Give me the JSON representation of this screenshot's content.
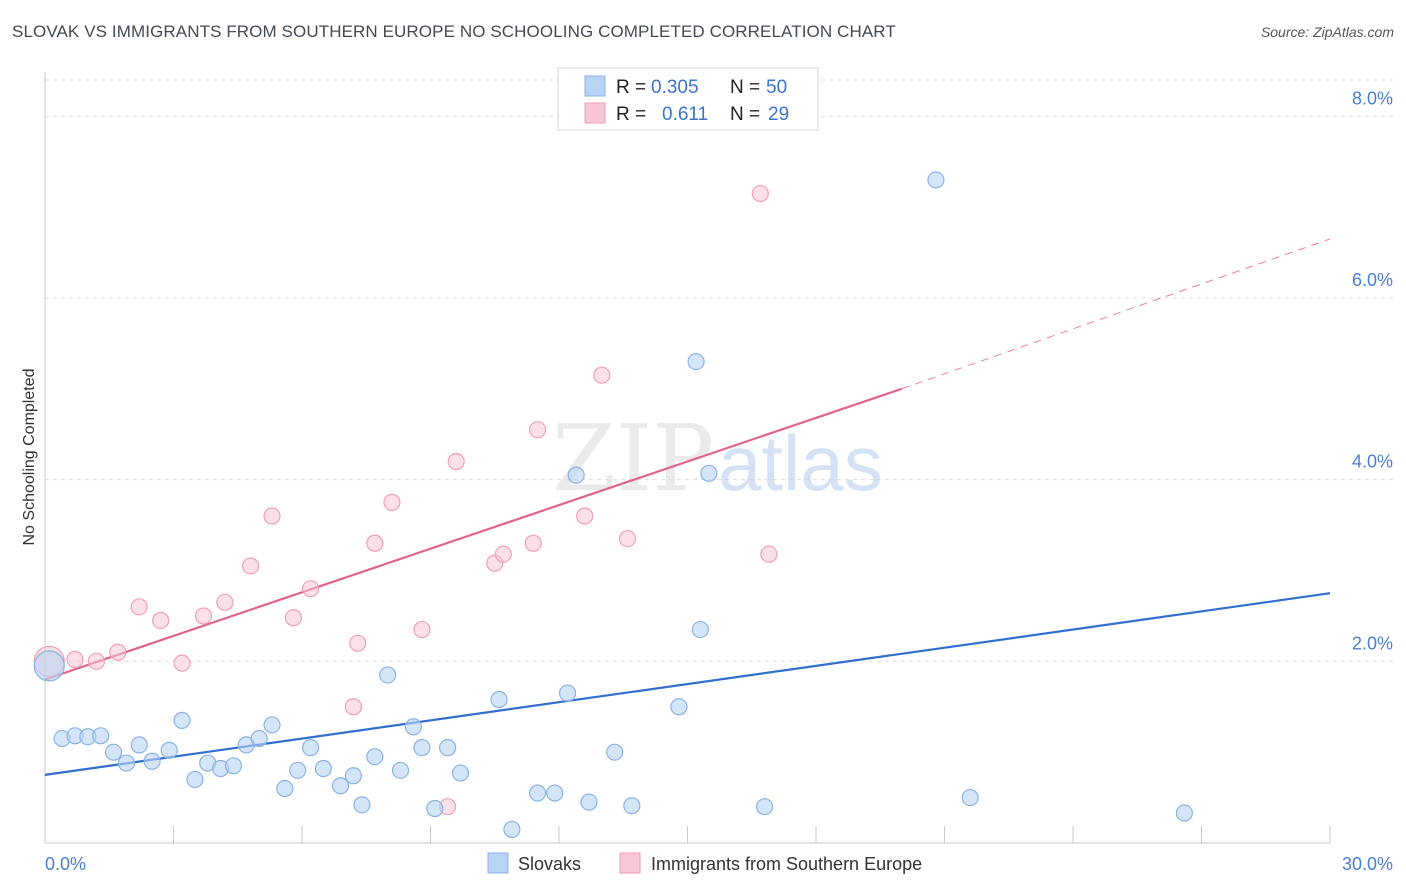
{
  "title": "SLOVAK VS IMMIGRANTS FROM SOUTHERN EUROPE NO SCHOOLING COMPLETED CORRELATION CHART",
  "source": "Source: ZipAtlas.com",
  "watermark": {
    "part1": "ZIP",
    "part2": "atlas"
  },
  "legend": {
    "rows": [
      {
        "r_label": "R =",
        "r_value": "0.305",
        "n_label": "N =",
        "n_value": "50"
      },
      {
        "r_label": "R =",
        "r_value": "0.611",
        "n_label": "N =",
        "n_value": "29"
      }
    ]
  },
  "bottom_legend": [
    "Slovaks",
    "Immigrants from Southern Europe"
  ],
  "colors": {
    "slovaks_fill": "#b8d3f3",
    "slovaks_stroke": "#8ab3e6",
    "slovaks_line": "#2f6fd0",
    "immig_fill": "#f8c6d4",
    "immig_stroke": "#ee9fb6",
    "immig_line": "#e0648c",
    "grid": "#dcdcdc",
    "tick_label": "#4a7fd6"
  },
  "chart_data": {
    "type": "scatter",
    "title": "SLOVAK VS IMMIGRANTS FROM SOUTHERN EUROPE NO SCHOOLING COMPLETED CORRELATION CHART",
    "xlabel": "",
    "ylabel": "No Schooling Completed",
    "xlim": [
      0,
      30
    ],
    "ylim": [
      0,
      8.4
    ],
    "x_tick_labels": [
      "0.0%",
      "30.0%"
    ],
    "y_ticks": [
      2,
      4,
      6,
      8
    ],
    "y_tick_labels": [
      "2.0%",
      "4.0%",
      "6.0%",
      "8.0%"
    ],
    "series": [
      {
        "name": "Slovaks",
        "R": 0.305,
        "N": 50,
        "trend": {
          "x": [
            0,
            30
          ],
          "y": [
            0.75,
            2.75
          ]
        },
        "points": [
          [
            0.1,
            1.95
          ],
          [
            0.4,
            1.15
          ],
          [
            0.7,
            1.18
          ],
          [
            1.0,
            1.17
          ],
          [
            1.3,
            1.18
          ],
          [
            1.6,
            1.0
          ],
          [
            1.9,
            0.88
          ],
          [
            2.2,
            1.08
          ],
          [
            2.5,
            0.9
          ],
          [
            2.9,
            1.02
          ],
          [
            3.2,
            1.35
          ],
          [
            3.5,
            0.7
          ],
          [
            3.8,
            0.88
          ],
          [
            4.1,
            0.82
          ],
          [
            4.4,
            0.85
          ],
          [
            4.7,
            1.08
          ],
          [
            5.0,
            1.15
          ],
          [
            5.3,
            1.3
          ],
          [
            5.6,
            0.6
          ],
          [
            5.9,
            0.8
          ],
          [
            6.2,
            1.05
          ],
          [
            6.5,
            0.82
          ],
          [
            6.9,
            0.63
          ],
          [
            7.2,
            0.74
          ],
          [
            7.4,
            0.42
          ],
          [
            7.7,
            0.95
          ],
          [
            8.0,
            1.85
          ],
          [
            8.3,
            0.8
          ],
          [
            8.6,
            1.28
          ],
          [
            8.8,
            1.05
          ],
          [
            9.1,
            0.38
          ],
          [
            9.4,
            1.05
          ],
          [
            9.7,
            0.77
          ],
          [
            10.6,
            1.58
          ],
          [
            10.9,
            0.15
          ],
          [
            11.5,
            0.55
          ],
          [
            11.9,
            0.55
          ],
          [
            12.2,
            1.65
          ],
          [
            12.4,
            4.05
          ],
          [
            12.7,
            0.45
          ],
          [
            13.3,
            1.0
          ],
          [
            13.7,
            0.41
          ],
          [
            14.8,
            1.5
          ],
          [
            15.2,
            5.3
          ],
          [
            15.3,
            2.35
          ],
          [
            15.5,
            4.07
          ],
          [
            16.8,
            0.4
          ],
          [
            20.8,
            7.3
          ],
          [
            21.6,
            0.5
          ],
          [
            26.6,
            0.33
          ]
        ]
      },
      {
        "name": "Immigrants from Southern Europe",
        "R": 0.611,
        "N": 29,
        "trend": {
          "x": [
            0,
            20
          ],
          "y": [
            1.8,
            5.0
          ]
        },
        "trend_extension": {
          "x": [
            20,
            30
          ],
          "y": [
            5.0,
            6.65
          ]
        },
        "points": [
          [
            0.1,
            2.0
          ],
          [
            0.7,
            2.02
          ],
          [
            1.2,
            2.0
          ],
          [
            1.7,
            2.1
          ],
          [
            2.2,
            2.6
          ],
          [
            2.7,
            2.45
          ],
          [
            3.2,
            1.98
          ],
          [
            3.7,
            2.5
          ],
          [
            4.2,
            2.65
          ],
          [
            4.8,
            3.05
          ],
          [
            5.3,
            3.6
          ],
          [
            5.8,
            2.48
          ],
          [
            6.2,
            2.8
          ],
          [
            7.2,
            1.5
          ],
          [
            7.3,
            2.2
          ],
          [
            7.7,
            3.3
          ],
          [
            8.1,
            3.75
          ],
          [
            8.8,
            2.35
          ],
          [
            9.4,
            0.4
          ],
          [
            9.6,
            4.2
          ],
          [
            10.5,
            3.08
          ],
          [
            10.7,
            3.18
          ],
          [
            11.4,
            3.3
          ],
          [
            11.5,
            4.55
          ],
          [
            12.6,
            3.6
          ],
          [
            13.0,
            5.15
          ],
          [
            13.6,
            3.35
          ],
          [
            16.7,
            7.15
          ],
          [
            16.9,
            3.18
          ]
        ]
      }
    ]
  }
}
